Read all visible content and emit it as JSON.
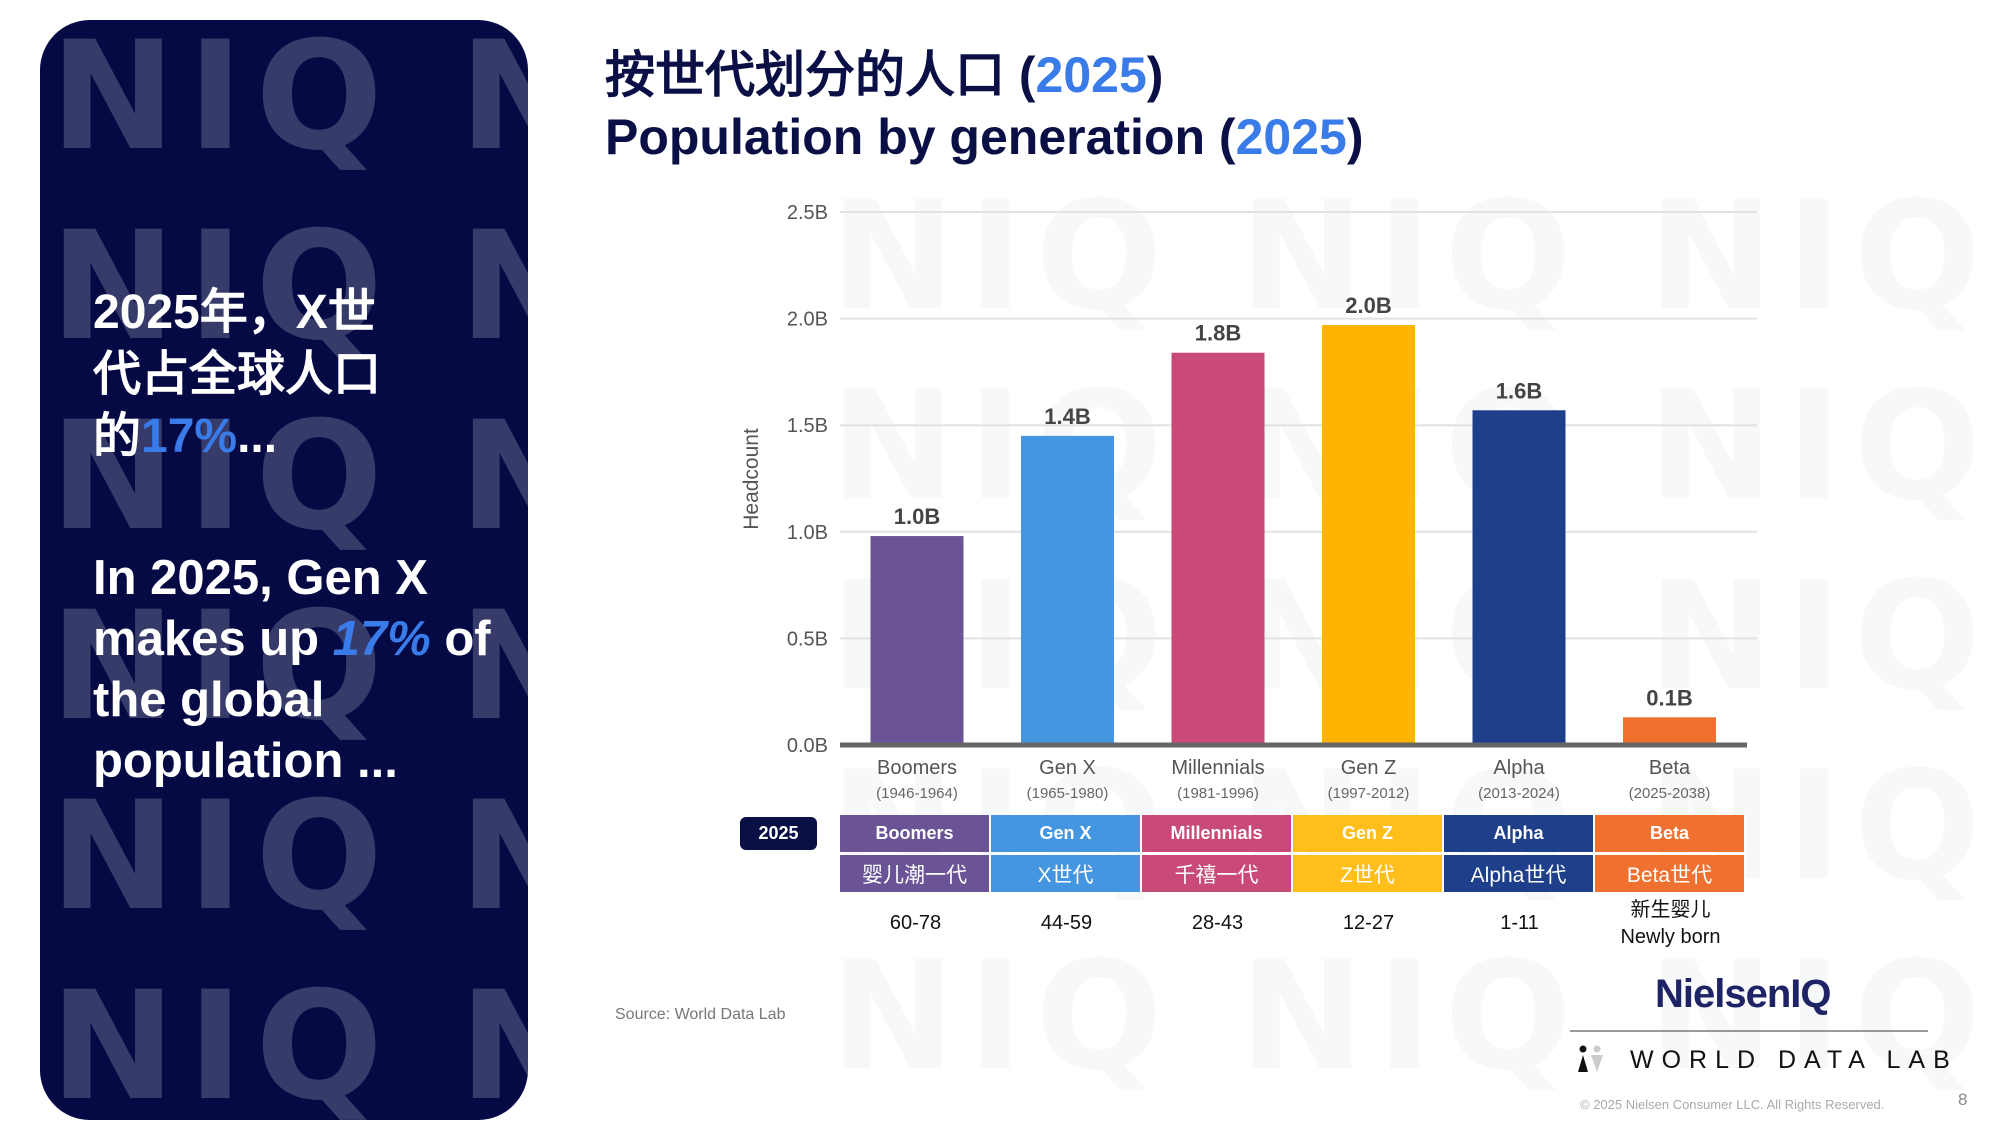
{
  "watermark": "NIQ",
  "left_panel": {
    "cn_pre": "2025年，X世代占全球人口的",
    "cn_pct": "17%",
    "cn_post": "...",
    "en_pre": "In 2025, Gen X makes up ",
    "en_pct": "17%",
    "en_post": " of the global population ..."
  },
  "title": {
    "cn": "按世代划分的人口 (",
    "year": "2025",
    "close": ")",
    "en": "Population by generation ("
  },
  "chart_data": {
    "type": "bar",
    "ylabel": "Headcount",
    "ylim": [
      0,
      2.5
    ],
    "yticks": [
      "0.0B",
      "0.5B",
      "1.0B",
      "1.5B",
      "2.0B",
      "2.5B"
    ],
    "grid": true,
    "categories": [
      "Boomers",
      "Gen X",
      "Millennials",
      "Gen Z",
      "Alpha",
      "Beta"
    ],
    "subcategories": [
      "(1946-1964)",
      "(1965-1980)",
      "(1981-1996)",
      "(1997-2012)",
      "(2013-2024)",
      "(2025-2038)"
    ],
    "values": [
      0.98,
      1.45,
      1.84,
      1.97,
      1.57,
      0.13
    ],
    "data_labels": [
      "1.0B",
      "1.4B",
      "1.8B",
      "2.0B",
      "1.6B",
      "0.1B"
    ],
    "colors": [
      "#6a5496",
      "#4596e0",
      "#c94a78",
      "#ffb400",
      "#1e3f8a",
      "#f07030"
    ]
  },
  "table": {
    "badge": "2025",
    "rows": [
      {
        "en": "Boomers",
        "cn": "婴儿潮一代",
        "age": "60-78"
      },
      {
        "en": "Gen X",
        "cn": "X世代",
        "age": "44-59"
      },
      {
        "en": "Millennials",
        "cn": "千禧一代",
        "age": "28-43"
      },
      {
        "en": "Gen Z",
        "cn": "Z世代",
        "age": "12-27"
      },
      {
        "en": "Alpha",
        "cn": "Alpha世代",
        "age": "1-11"
      },
      {
        "en": "Beta",
        "cn": "Beta世代",
        "age_cn": "新生婴儿",
        "age": "Newly born"
      }
    ]
  },
  "source": "Source: World Data Lab",
  "logos": {
    "niq": "NielsenIQ",
    "wdl": "WORLD DATA LAB"
  },
  "copyright": "© 2025 Nielsen Consumer LLC. All Rights Reserved.",
  "page_number": "8"
}
